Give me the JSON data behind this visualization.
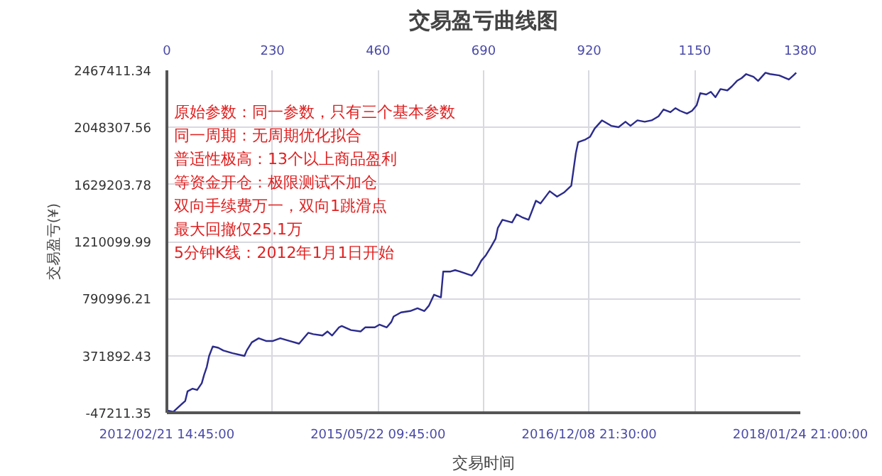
{
  "chart_data": {
    "type": "line",
    "title": "交易盈亏曲线图",
    "xlabel": "交易时间",
    "ylabel": "交易盈亏(¥)",
    "x": [
      0,
      14,
      30,
      40,
      45,
      56,
      66,
      76,
      81,
      87,
      92,
      100,
      112,
      123,
      143,
      169,
      174,
      185,
      200,
      216,
      231,
      247,
      267,
      288,
      303,
      308,
      319,
      339,
      350,
      360,
      375,
      381,
      401,
      422,
      432,
      453,
      463,
      479,
      489,
      494,
      510,
      530,
      546,
      561,
      571,
      582,
      597,
      602,
      618,
      628,
      638,
      664,
      674,
      685,
      695,
      706,
      716,
      721,
      731,
      752,
      762,
      773,
      788,
      804,
      814,
      834,
      850,
      865,
      881,
      891,
      896,
      912,
      922,
      932,
      948,
      968,
      984,
      999,
      1010,
      1025,
      1041,
      1056,
      1071,
      1082,
      1097,
      1108,
      1118,
      1133,
      1144,
      1154,
      1162,
      1175,
      1185,
      1195,
      1206,
      1221,
      1231,
      1242,
      1252,
      1262,
      1278,
      1288,
      1304,
      1314,
      1334,
      1355,
      1365,
      1371
    ],
    "series": [
      {
        "color": "#2b2b8c",
        "values": [
          -30000,
          -40000,
          10000,
          40000,
          110000,
          130000,
          120000,
          170000,
          230000,
          290000,
          370000,
          440000,
          430000,
          410000,
          390000,
          370000,
          410000,
          470000,
          500000,
          480000,
          480000,
          500000,
          480000,
          460000,
          520000,
          540000,
          530000,
          520000,
          550000,
          520000,
          580000,
          590000,
          560000,
          550000,
          580000,
          580000,
          600000,
          580000,
          620000,
          660000,
          690000,
          700000,
          720000,
          700000,
          740000,
          820000,
          800000,
          990000,
          990000,
          1000000,
          990000,
          960000,
          1000000,
          1070000,
          1110000,
          1170000,
          1230000,
          1310000,
          1370000,
          1350000,
          1410000,
          1390000,
          1370000,
          1510000,
          1490000,
          1580000,
          1540000,
          1570000,
          1620000,
          1860000,
          1940000,
          1960000,
          1980000,
          2040000,
          2100000,
          2060000,
          2050000,
          2090000,
          2060000,
          2100000,
          2090000,
          2100000,
          2130000,
          2180000,
          2160000,
          2190000,
          2170000,
          2150000,
          2170000,
          2210000,
          2300000,
          2290000,
          2310000,
          2270000,
          2330000,
          2320000,
          2350000,
          2390000,
          2410000,
          2440000,
          2420000,
          2390000,
          2450000,
          2440000,
          2430000,
          2400000,
          2430000,
          2450000
        ]
      }
    ],
    "xlim": [
      0,
      1380
    ],
    "xticks": [
      0,
      230,
      460,
      690,
      920,
      1150,
      1380
    ],
    "ylim": [
      -47211.35,
      2467411.34
    ],
    "yticks": [
      -47211.35,
      371892.43,
      790996.21,
      1210099.99,
      1629203.78,
      2048307.56,
      2467411.34
    ],
    "grid": true,
    "annotations": [
      "2012/02/21 14:45:00",
      "2015/05/22 09:45:00",
      "2016/12/08 21:30:00",
      "2018/01/24 21:00:00",
      "原始参数：同一参数，只有三个基本参数",
      "同一周期：无周期优化拟合",
      "普适性极高：13个以上商品盈利",
      "等资金开仓：极限测试不加仓",
      "双向手续费万一，双向1跳滑点",
      "最大回撤仅25.1万",
      "5分钟K线：2012年1月1日开始"
    ]
  }
}
